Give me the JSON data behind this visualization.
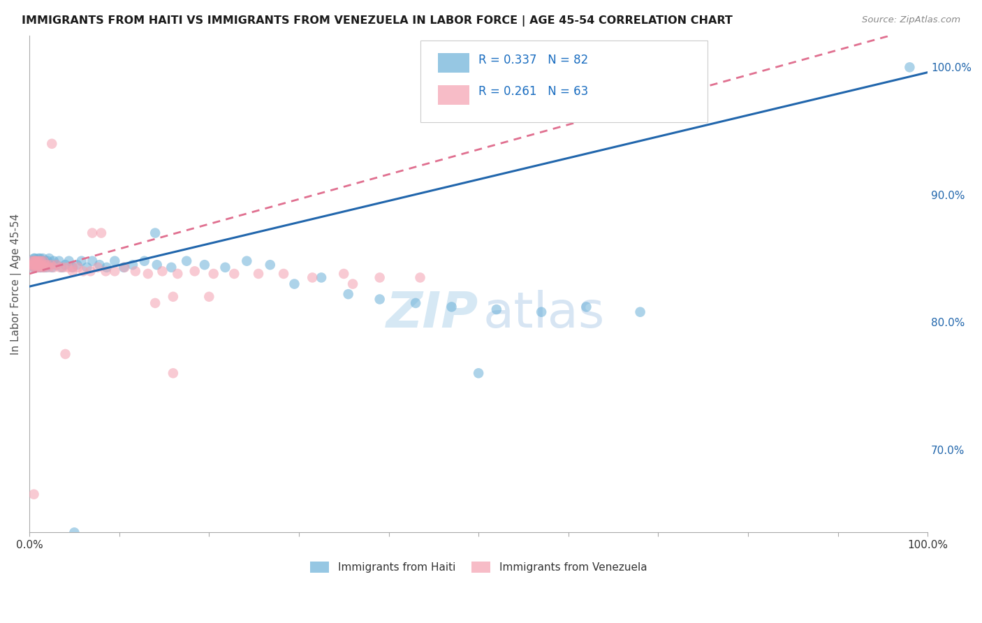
{
  "title": "IMMIGRANTS FROM HAITI VS IMMIGRANTS FROM VENEZUELA IN LABOR FORCE | AGE 45-54 CORRELATION CHART",
  "source": "Source: ZipAtlas.com",
  "ylabel": "In Labor Force | Age 45-54",
  "xlim": [
    0.0,
    1.0
  ],
  "ylim": [
    0.635,
    1.025
  ],
  "legend_r_haiti": "R = 0.337",
  "legend_n_haiti": "N = 82",
  "legend_r_venezuela": "R = 0.261",
  "legend_n_venezuela": "N = 63",
  "haiti_color": "#6ab0d8",
  "venezuela_color": "#f4a0b0",
  "haiti_line_color": "#2166ac",
  "venezuela_line_color": "#e07090",
  "watermark_zip": "ZIP",
  "watermark_atlas": "atlas",
  "haiti_R": 0.337,
  "haiti_b0": 0.828,
  "haiti_b1": 0.168,
  "venezuela_R": 0.261,
  "venezuela_b0": 0.838,
  "venezuela_b1": 0.195,
  "xtick_positions": [
    0.0,
    0.1,
    0.2,
    0.3,
    0.4,
    0.5,
    0.6,
    0.7,
    0.8,
    0.9,
    1.0
  ],
  "ytick_right_positions": [
    0.7,
    0.8,
    0.9,
    1.0
  ],
  "ytick_right_labels": [
    "70.0%",
    "80.0%",
    "90.0%",
    "100.0%"
  ],
  "grid_color": "#d0d0d0",
  "background_color": "#ffffff",
  "haiti_x": [
    0.001,
    0.002,
    0.003,
    0.003,
    0.004,
    0.004,
    0.005,
    0.005,
    0.005,
    0.006,
    0.006,
    0.006,
    0.007,
    0.007,
    0.007,
    0.008,
    0.008,
    0.008,
    0.008,
    0.009,
    0.009,
    0.009,
    0.01,
    0.01,
    0.01,
    0.01,
    0.011,
    0.011,
    0.012,
    0.012,
    0.013,
    0.013,
    0.014,
    0.015,
    0.015,
    0.016,
    0.017,
    0.018,
    0.019,
    0.02,
    0.021,
    0.022,
    0.023,
    0.025,
    0.027,
    0.03,
    0.033,
    0.036,
    0.04,
    0.044,
    0.048,
    0.053,
    0.058,
    0.064,
    0.07,
    0.078,
    0.086,
    0.095,
    0.105,
    0.115,
    0.128,
    0.142,
    0.158,
    0.175,
    0.195,
    0.218,
    0.242,
    0.268,
    0.295,
    0.325,
    0.355,
    0.39,
    0.43,
    0.47,
    0.52,
    0.57,
    0.62,
    0.68,
    0.5,
    0.98,
    0.14,
    0.05
  ],
  "haiti_y": [
    0.845,
    0.848,
    0.848,
    0.845,
    0.848,
    0.843,
    0.845,
    0.848,
    0.85,
    0.848,
    0.843,
    0.85,
    0.845,
    0.848,
    0.843,
    0.845,
    0.848,
    0.843,
    0.848,
    0.845,
    0.848,
    0.843,
    0.85,
    0.845,
    0.848,
    0.843,
    0.848,
    0.845,
    0.843,
    0.85,
    0.848,
    0.843,
    0.848,
    0.845,
    0.85,
    0.843,
    0.848,
    0.845,
    0.843,
    0.848,
    0.845,
    0.85,
    0.845,
    0.843,
    0.848,
    0.845,
    0.848,
    0.843,
    0.845,
    0.848,
    0.843,
    0.845,
    0.848,
    0.843,
    0.848,
    0.845,
    0.843,
    0.848,
    0.843,
    0.845,
    0.848,
    0.845,
    0.843,
    0.848,
    0.845,
    0.843,
    0.848,
    0.845,
    0.83,
    0.835,
    0.822,
    0.818,
    0.815,
    0.812,
    0.81,
    0.808,
    0.812,
    0.808,
    0.76,
    1.0,
    0.87,
    0.635
  ],
  "venezuela_x": [
    0.001,
    0.002,
    0.003,
    0.004,
    0.005,
    0.005,
    0.006,
    0.006,
    0.007,
    0.007,
    0.008,
    0.009,
    0.009,
    0.01,
    0.011,
    0.011,
    0.012,
    0.013,
    0.014,
    0.015,
    0.016,
    0.017,
    0.018,
    0.02,
    0.022,
    0.024,
    0.027,
    0.03,
    0.034,
    0.038,
    0.043,
    0.048,
    0.054,
    0.06,
    0.068,
    0.076,
    0.085,
    0.095,
    0.106,
    0.118,
    0.132,
    0.148,
    0.165,
    0.184,
    0.205,
    0.228,
    0.255,
    0.283,
    0.315,
    0.35,
    0.39,
    0.435,
    0.14,
    0.2,
    0.048,
    0.08,
    0.16,
    0.36,
    0.025,
    0.07,
    0.04,
    0.005,
    0.16
  ],
  "venezuela_y": [
    0.845,
    0.848,
    0.845,
    0.843,
    0.848,
    0.845,
    0.848,
    0.843,
    0.845,
    0.848,
    0.843,
    0.845,
    0.848,
    0.843,
    0.848,
    0.845,
    0.843,
    0.848,
    0.845,
    0.843,
    0.848,
    0.843,
    0.845,
    0.845,
    0.843,
    0.845,
    0.843,
    0.845,
    0.843,
    0.843,
    0.843,
    0.84,
    0.843,
    0.84,
    0.84,
    0.843,
    0.84,
    0.84,
    0.843,
    0.84,
    0.838,
    0.84,
    0.838,
    0.84,
    0.838,
    0.838,
    0.838,
    0.838,
    0.835,
    0.838,
    0.835,
    0.835,
    0.815,
    0.82,
    0.843,
    0.87,
    0.82,
    0.83,
    0.94,
    0.87,
    0.775,
    0.665,
    0.76
  ]
}
